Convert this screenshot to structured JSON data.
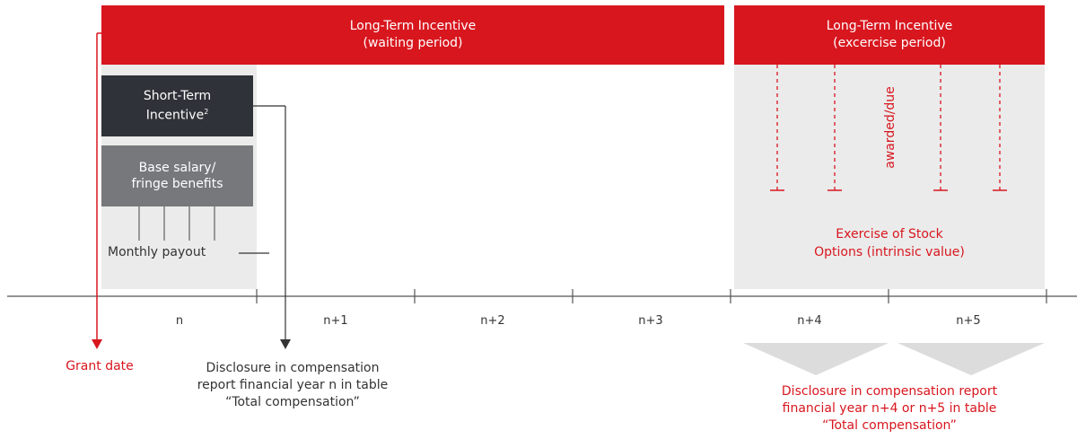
{
  "banners": {
    "waiting_line1": "Long-Term Incentive",
    "waiting_line2": "(waiting period)",
    "exercise_line1": "Long-Term Incentive",
    "exercise_line2": "(excercise period)"
  },
  "boxes": {
    "sti_line1": "Short-Term",
    "sti_line2": "Incentive",
    "sti_sup": "2",
    "base_line1": "Base salary/",
    "base_line2": "fringe benefits"
  },
  "labels": {
    "monthly_payout": "Monthly payout",
    "awarded_due": "awarded/due",
    "exercise_line1": "Exercise of Stock",
    "exercise_line2": "Options (intrinsic value)",
    "grant_date": "Grant date",
    "disclosure_left_line1": "Disclosure in compensation",
    "disclosure_left_line2": "report financial year n in table",
    "disclosure_left_line3": "“Total compensation”",
    "disclosure_right_line1": "Disclosure in compensation report",
    "disclosure_right_line2": "financial year n+4 or n+5 in table",
    "disclosure_right_line3": "“Total compensation”"
  },
  "timeline": {
    "periods": [
      "n",
      "n+1",
      "n+2",
      "n+3",
      "n+4",
      "n+5"
    ]
  },
  "colors": {
    "red": "#d8161e",
    "dark_box": "#2f3238",
    "grey_box": "#76787c",
    "light_grey": "#ebebeb",
    "text_dark": "#333333"
  }
}
